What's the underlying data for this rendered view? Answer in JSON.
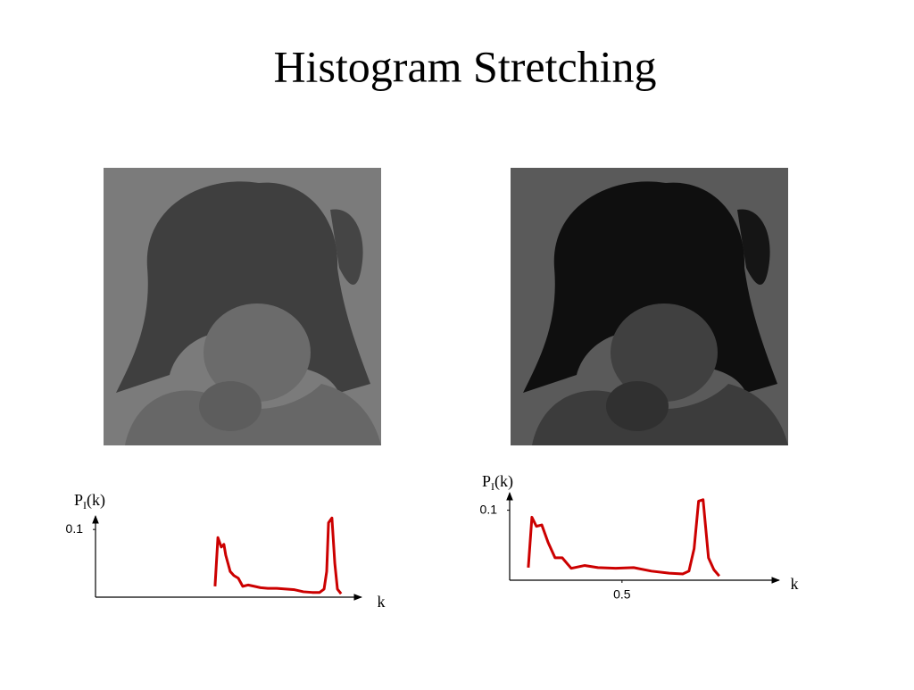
{
  "title": "Histogram Stretching",
  "chart_data": [
    {
      "type": "line",
      "color": "#cc0000",
      "ylabel": {
        "main": "P",
        "sub": "I",
        "rest": "(k)"
      },
      "xlabel": "k",
      "xlim": [
        0,
        1
      ],
      "ylim": [
        0,
        0.12
      ],
      "yticks": [
        0.1
      ],
      "xticks": [],
      "x": [
        0.457,
        0.468,
        0.481,
        0.491,
        0.498,
        0.515,
        0.529,
        0.546,
        0.563,
        0.584,
        0.608,
        0.631,
        0.659,
        0.693,
        0.727,
        0.761,
        0.795,
        0.829,
        0.857,
        0.874,
        0.884,
        0.891,
        0.904,
        0.915,
        0.925,
        0.939
      ],
      "values": [
        0.016,
        0.088,
        0.074,
        0.078,
        0.062,
        0.038,
        0.032,
        0.028,
        0.016,
        0.018,
        0.016,
        0.014,
        0.013,
        0.013,
        0.012,
        0.011,
        0.008,
        0.007,
        0.007,
        0.012,
        0.038,
        0.11,
        0.117,
        0.05,
        0.012,
        0.005
      ]
    },
    {
      "type": "line",
      "color": "#cc0000",
      "ylabel": {
        "main": "P",
        "sub": "I",
        "rest": "(k)"
      },
      "xlabel": "k",
      "xlim": [
        0,
        1.18
      ],
      "ylim": [
        0,
        0.125
      ],
      "yticks": [
        0.1
      ],
      "xticks": [
        0.5
      ],
      "x": [
        0.083,
        0.099,
        0.119,
        0.143,
        0.171,
        0.202,
        0.234,
        0.274,
        0.333,
        0.393,
        0.472,
        0.552,
        0.631,
        0.71,
        0.77,
        0.798,
        0.821,
        0.841,
        0.861,
        0.885,
        0.909,
        0.933
      ],
      "values": [
        0.018,
        0.09,
        0.077,
        0.079,
        0.054,
        0.032,
        0.032,
        0.017,
        0.021,
        0.018,
        0.017,
        0.018,
        0.013,
        0.01,
        0.009,
        0.013,
        0.045,
        0.113,
        0.115,
        0.032,
        0.015,
        0.006
      ]
    }
  ]
}
